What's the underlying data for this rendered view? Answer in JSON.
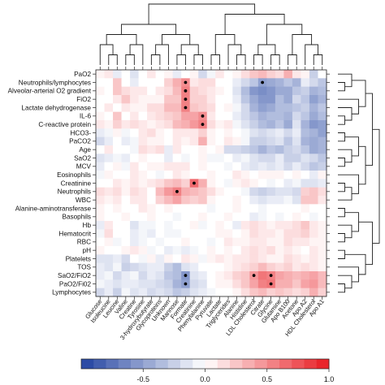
{
  "chart_data": {
    "type": "heatmap",
    "title": "",
    "xlabel": "",
    "ylabel": "",
    "columns": [
      "Glucose",
      "Isoleucine",
      "Leucine",
      "Valine",
      "Creatine",
      "Tyrosine",
      "3-hydroxybutyrate",
      "Glycoproteins",
      "Unknown",
      "Mannose",
      "Formate",
      "Creatinine",
      "Phenylalanine",
      "Pyruvate",
      "Lactate",
      "Triglycerides",
      "Alanine",
      "Histidine",
      "LDL Cholesterol",
      "Citrate",
      "Glycine",
      "Glutamine",
      "Apo B100",
      "Acetone",
      "Apo A2",
      "HDL Cholesterol",
      "Apo A1"
    ],
    "rows": [
      "PaO2",
      "Neutrophils/lymphocytes",
      "Alveolar-arterial O2 gradient",
      "FiO2",
      "Lactate dehydrogenase",
      "IL-6",
      "C-reactive protein",
      "HCO3-",
      "PaCO2",
      "Age",
      "SaO2",
      "MCV",
      "Eosinophils",
      "Creatinine",
      "Neutrophils",
      "WBC",
      "Alanine-aminotransferase",
      "Basophils",
      "Hb",
      "Hematocrit",
      "RBC",
      "pH",
      "Platelets",
      "TOS",
      "SaO2/FiO2",
      "PaO2/Fi02",
      "Lymphocytes"
    ],
    "values": [
      [
        0.05,
        0.1,
        -0.1,
        0.0,
        -0.15,
        0.0,
        0.1,
        0.0,
        0.05,
        -0.1,
        0.0,
        0.05,
        -0.2,
        -0.05,
        0.1,
        0.0,
        0.05,
        0.15,
        0.25,
        0.3,
        0.2,
        0.15,
        0.35,
        0.1,
        0.05,
        -0.25,
        0.0
      ],
      [
        0.0,
        0.0,
        0.25,
        0.0,
        -0.1,
        0.0,
        0.0,
        0.0,
        0.2,
        0.35,
        0.5,
        0.1,
        0.15,
        0.15,
        0.0,
        0.0,
        -0.1,
        -0.2,
        -0.3,
        -0.5,
        -0.45,
        -0.4,
        -0.3,
        -0.4,
        -0.1,
        -0.2,
        -0.3
      ],
      [
        0.05,
        0.0,
        0.25,
        0.15,
        0.1,
        0.1,
        0.0,
        0.1,
        0.15,
        0.3,
        0.55,
        0.2,
        0.15,
        0.1,
        0.05,
        0.0,
        -0.15,
        -0.35,
        -0.55,
        -0.6,
        -0.55,
        -0.45,
        -0.45,
        -0.3,
        -0.25,
        -0.4,
        -0.35
      ],
      [
        0.0,
        0.0,
        0.1,
        0.25,
        0.1,
        0.05,
        0.05,
        0.05,
        0.25,
        0.25,
        0.55,
        0.2,
        0.2,
        0.1,
        0.0,
        0.0,
        -0.1,
        -0.3,
        -0.45,
        -0.55,
        -0.55,
        -0.35,
        -0.45,
        -0.2,
        -0.3,
        -0.5,
        -0.4
      ],
      [
        0.0,
        0.1,
        0.0,
        0.1,
        0.05,
        0.05,
        0.15,
        0.15,
        0.3,
        0.3,
        0.55,
        0.25,
        0.2,
        0.15,
        0.0,
        0.05,
        -0.05,
        -0.2,
        -0.4,
        -0.5,
        -0.45,
        -0.35,
        -0.35,
        -0.3,
        -0.25,
        -0.4,
        -0.3
      ],
      [
        0.05,
        0.0,
        0.25,
        0.0,
        0.1,
        0.0,
        0.1,
        0.15,
        0.2,
        0.25,
        0.4,
        0.4,
        0.5,
        0.1,
        0.0,
        0.0,
        -0.1,
        -0.2,
        -0.3,
        -0.4,
        -0.35,
        -0.35,
        -0.4,
        -0.2,
        -0.3,
        -0.45,
        -0.35
      ],
      [
        0.1,
        0.05,
        0.2,
        0.1,
        0.15,
        0.1,
        0.05,
        0.1,
        0.15,
        0.3,
        0.35,
        0.45,
        0.55,
        0.15,
        0.05,
        0.1,
        -0.05,
        -0.15,
        -0.25,
        -0.35,
        -0.4,
        -0.3,
        -0.45,
        -0.15,
        -0.4,
        -0.55,
        -0.5
      ],
      [
        -0.1,
        -0.05,
        0.05,
        -0.05,
        0.0,
        0.1,
        0.15,
        0.05,
        0.0,
        0.1,
        0.1,
        0.1,
        0.2,
        0.05,
        0.0,
        0.05,
        0.0,
        -0.05,
        -0.15,
        -0.2,
        -0.15,
        -0.1,
        -0.2,
        -0.1,
        -0.35,
        -0.4,
        -0.5
      ],
      [
        -0.2,
        -0.1,
        0.0,
        -0.1,
        -0.05,
        0.1,
        0.05,
        0.05,
        0.0,
        0.1,
        0.05,
        0.1,
        0.35,
        0.05,
        0.0,
        0.1,
        0.05,
        -0.05,
        -0.25,
        -0.25,
        -0.2,
        -0.15,
        -0.3,
        -0.15,
        -0.4,
        -0.45,
        -0.4
      ],
      [
        0.0,
        0.1,
        0.0,
        0.0,
        -0.05,
        0.15,
        0.1,
        0.15,
        -0.1,
        0.1,
        0.0,
        0.0,
        0.05,
        0.0,
        0.05,
        -0.2,
        -0.2,
        -0.25,
        -0.3,
        -0.4,
        -0.3,
        -0.35,
        -0.25,
        -0.2,
        -0.3,
        -0.45,
        -0.4
      ],
      [
        -0.15,
        -0.1,
        -0.05,
        -0.1,
        0.0,
        0.05,
        0.0,
        0.0,
        -0.1,
        0.0,
        -0.05,
        0.0,
        0.05,
        -0.05,
        -0.05,
        0.0,
        -0.1,
        -0.05,
        -0.15,
        -0.2,
        -0.2,
        -0.1,
        -0.25,
        -0.25,
        -0.15,
        -0.2,
        -0.3
      ],
      [
        -0.1,
        0.0,
        0.05,
        -0.05,
        0.1,
        0.0,
        0.05,
        0.05,
        0.1,
        0.1,
        0.1,
        0.0,
        0.05,
        0.0,
        0.0,
        -0.05,
        0.0,
        -0.1,
        -0.15,
        -0.1,
        -0.15,
        -0.1,
        -0.2,
        -0.1,
        -0.2,
        -0.3,
        -0.25
      ],
      [
        -0.05,
        0.05,
        0.0,
        0.0,
        0.1,
        0.05,
        0.0,
        -0.05,
        0.0,
        0.1,
        0.05,
        0.0,
        0.0,
        0.05,
        0.0,
        0.0,
        0.1,
        0.05,
        0.0,
        0.05,
        0.05,
        0.05,
        0.0,
        0.05,
        0.0,
        -0.1,
        0.05
      ],
      [
        0.0,
        0.0,
        0.1,
        0.05,
        0.1,
        0.05,
        0.1,
        0.15,
        0.25,
        0.3,
        0.2,
        0.65,
        0.35,
        0.05,
        0.0,
        -0.05,
        0.05,
        0.1,
        0.05,
        0.0,
        -0.05,
        0.0,
        -0.1,
        -0.05,
        -0.15,
        -0.15,
        -0.1
      ],
      [
        0.15,
        0.1,
        0.15,
        0.05,
        0.15,
        0.1,
        0.0,
        0.3,
        0.45,
        0.55,
        0.35,
        0.3,
        0.25,
        0.15,
        0.05,
        0.0,
        0.0,
        -0.05,
        -0.2,
        -0.25,
        -0.2,
        -0.15,
        -0.15,
        -0.2,
        0.2,
        0.25,
        0.15
      ],
      [
        0.1,
        0.05,
        0.1,
        0.0,
        0.1,
        0.1,
        0.0,
        0.2,
        0.3,
        0.4,
        0.25,
        0.2,
        0.25,
        0.05,
        0.0,
        0.0,
        0.05,
        0.0,
        -0.1,
        -0.15,
        -0.1,
        -0.1,
        -0.05,
        -0.15,
        0.25,
        0.25,
        0.1
      ],
      [
        0.05,
        0.0,
        0.05,
        0.0,
        0.0,
        0.1,
        0.05,
        0.0,
        0.05,
        0.0,
        0.0,
        0.0,
        0.0,
        -0.05,
        0.0,
        0.0,
        0.05,
        0.0,
        0.0,
        -0.05,
        0.0,
        0.0,
        0.0,
        0.0,
        0.05,
        0.0,
        0.0
      ],
      [
        0.05,
        0.0,
        0.0,
        0.05,
        0.0,
        0.0,
        0.05,
        0.0,
        0.0,
        -0.05,
        0.0,
        0.0,
        0.05,
        0.0,
        0.0,
        0.05,
        0.0,
        0.0,
        -0.1,
        -0.05,
        0.0,
        -0.05,
        0.0,
        0.05,
        0.0,
        -0.05,
        0.0
      ],
      [
        -0.1,
        0.1,
        0.0,
        0.0,
        -0.15,
        -0.05,
        -0.05,
        0.0,
        -0.05,
        0.0,
        0.0,
        0.05,
        -0.05,
        0.0,
        0.05,
        0.0,
        -0.1,
        0.1,
        0.15,
        0.1,
        0.05,
        0.1,
        0.1,
        0.15,
        0.25,
        0.1,
        0.05
      ],
      [
        -0.05,
        0.15,
        0.0,
        0.0,
        -0.1,
        -0.05,
        -0.1,
        0.0,
        -0.05,
        -0.05,
        0.0,
        0.0,
        0.0,
        0.0,
        0.05,
        0.05,
        0.0,
        0.05,
        0.15,
        0.1,
        0.1,
        0.05,
        0.15,
        0.15,
        0.2,
        0.1,
        0.05
      ],
      [
        0.0,
        0.05,
        -0.05,
        0.0,
        -0.1,
        -0.05,
        0.0,
        -0.05,
        0.0,
        0.0,
        0.05,
        0.0,
        0.0,
        -0.05,
        0.0,
        0.1,
        0.05,
        0.05,
        0.1,
        0.1,
        0.05,
        0.05,
        0.15,
        0.1,
        0.1,
        0.05,
        0.05
      ],
      [
        0.05,
        0.0,
        0.0,
        0.05,
        0.1,
        0.05,
        -0.05,
        0.0,
        -0.1,
        -0.05,
        -0.1,
        -0.05,
        0.0,
        0.05,
        0.0,
        0.05,
        0.0,
        0.1,
        0.15,
        0.1,
        0.15,
        0.05,
        0.1,
        0.05,
        0.0,
        0.1,
        0.05
      ],
      [
        -0.15,
        -0.15,
        -0.1,
        -0.2,
        0.0,
        -0.05,
        0.05,
        -0.1,
        0.05,
        0.0,
        0.1,
        0.05,
        -0.05,
        0.05,
        0.1,
        0.05,
        0.1,
        0.1,
        0.15,
        0.1,
        0.05,
        0.05,
        0.15,
        0.1,
        0.05,
        0.1,
        0.05
      ],
      [
        -0.1,
        -0.15,
        -0.05,
        -0.25,
        -0.2,
        -0.15,
        -0.1,
        -0.1,
        -0.25,
        -0.35,
        -0.15,
        -0.1,
        0.0,
        0.0,
        0.0,
        0.05,
        0.1,
        0.15,
        0.2,
        0.3,
        0.2,
        0.15,
        0.2,
        0.1,
        0.15,
        0.1,
        0.05
      ],
      [
        -0.1,
        -0.05,
        -0.2,
        -0.1,
        -0.05,
        -0.2,
        -0.1,
        -0.15,
        -0.3,
        -0.35,
        -0.55,
        -0.15,
        -0.1,
        0.0,
        0.05,
        0.1,
        0.2,
        0.25,
        0.45,
        0.6,
        0.55,
        0.4,
        0.35,
        0.3,
        0.35,
        0.4,
        0.3
      ],
      [
        -0.05,
        -0.1,
        -0.15,
        -0.1,
        -0.1,
        -0.15,
        -0.15,
        -0.2,
        -0.25,
        -0.4,
        -0.5,
        -0.2,
        -0.15,
        0.0,
        0.05,
        0.05,
        0.15,
        0.25,
        0.4,
        0.55,
        0.6,
        0.35,
        0.35,
        0.25,
        0.4,
        0.45,
        0.3
      ],
      [
        -0.2,
        -0.1,
        -0.25,
        -0.05,
        -0.15,
        -0.1,
        -0.2,
        -0.15,
        -0.2,
        -0.3,
        -0.25,
        -0.15,
        -0.1,
        -0.05,
        0.0,
        0.0,
        0.05,
        0.15,
        0.25,
        0.3,
        0.2,
        0.25,
        0.2,
        0.15,
        0.2,
        0.35,
        0.2
      ]
    ],
    "significant": [
      [
        1,
        10
      ],
      [
        2,
        10
      ],
      [
        3,
        10
      ],
      [
        4,
        10
      ],
      [
        5,
        12
      ],
      [
        6,
        12
      ],
      [
        13,
        11
      ],
      [
        14,
        9
      ],
      [
        1,
        19
      ],
      [
        24,
        10
      ],
      [
        25,
        10
      ],
      [
        24,
        18
      ],
      [
        24,
        20
      ],
      [
        25,
        20
      ]
    ],
    "colorbar": {
      "range": [
        -1,
        1
      ],
      "ticks": [
        "-0.5",
        "0.0",
        "0.5",
        "1.0"
      ],
      "tick_values": [
        -0.5,
        0.0,
        0.5,
        1.0
      ],
      "low_color": "#2142a0",
      "mid_color": "#ffffff",
      "high_color": "#e81a20"
    },
    "dendrograms": [
      "top (columns)",
      "right (rows)"
    ]
  }
}
